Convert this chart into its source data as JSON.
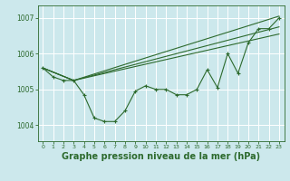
{
  "background_color": "#cce8ec",
  "grid_color": "#ffffff",
  "line_color": "#2d6a2d",
  "xlabel": "Graphe pression niveau de la mer (hPa)",
  "xlabel_fontsize": 7,
  "ylabel_ticks": [
    1004,
    1005,
    1006,
    1007
  ],
  "xlim": [
    -0.5,
    23.5
  ],
  "ylim": [
    1003.55,
    1007.35
  ],
  "x_ticks": [
    0,
    1,
    2,
    3,
    4,
    5,
    6,
    7,
    8,
    9,
    10,
    11,
    12,
    13,
    14,
    15,
    16,
    17,
    18,
    19,
    20,
    21,
    22,
    23
  ],
  "series": {
    "line1_x": [
      0,
      1,
      2,
      3,
      4,
      5,
      6,
      7,
      8,
      9,
      10,
      11,
      12,
      13,
      14,
      15,
      16,
      17,
      18,
      19,
      20,
      21,
      22,
      23
    ],
    "line1_y": [
      1005.6,
      1005.35,
      1005.25,
      1005.25,
      1004.85,
      1004.2,
      1004.1,
      1004.1,
      1004.4,
      1004.95,
      1005.1,
      1005.0,
      1005.0,
      1004.85,
      1004.85,
      1005.0,
      1005.55,
      1005.05,
      1006.0,
      1005.45,
      1006.3,
      1006.7,
      1006.7,
      1007.0
    ],
    "line2_x": [
      0,
      3,
      23
    ],
    "line2_y": [
      1005.6,
      1005.25,
      1007.05
    ],
    "line3_x": [
      0,
      3,
      23
    ],
    "line3_y": [
      1005.6,
      1005.25,
      1006.75
    ],
    "line4_x": [
      0,
      3,
      23
    ],
    "line4_y": [
      1005.6,
      1005.25,
      1006.55
    ]
  }
}
